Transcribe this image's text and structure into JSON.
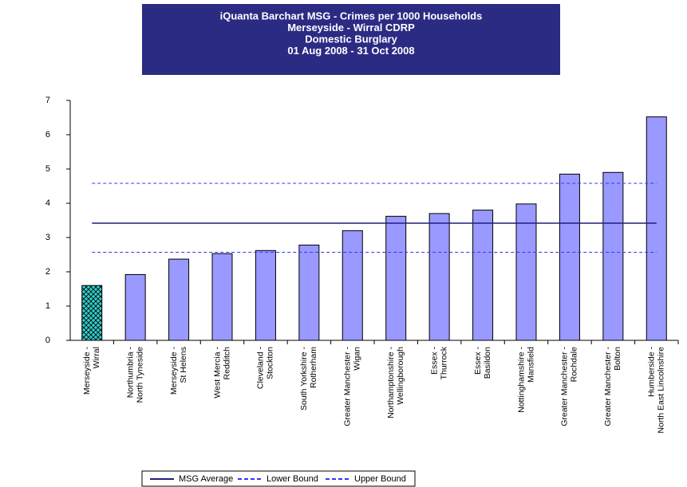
{
  "chart_data": {
    "type": "bar",
    "title": [
      "iQuanta Barchart MSG - Crimes per 1000 Households",
      "Merseyside - Wirral CDRP",
      "Domestic Burglary",
      "01 Aug 2008 - 31 Oct 2008"
    ],
    "categories": [
      [
        "Merseyside -",
        "Wirral"
      ],
      [
        "Northumbria -",
        "North Tyneside"
      ],
      [
        "Merseyside -",
        "St Helens"
      ],
      [
        "West Mercia -",
        "Redditch"
      ],
      [
        "Cleveland -",
        "Stockton"
      ],
      [
        "South Yorkshire -",
        "Rotherham"
      ],
      [
        "Greater Manchester -",
        "Wigan"
      ],
      [
        "Northamptonshire -",
        "Wellingborough"
      ],
      [
        "Essex -",
        "Thurrock"
      ],
      [
        "Essex -",
        "Basildon"
      ],
      [
        "Nottinghamshire -",
        "Mansfield"
      ],
      [
        "Greater Manchester -",
        "Rochdale"
      ],
      [
        "Greater Manchester -",
        "Bolton"
      ],
      [
        "Humberside -",
        "North East Lincolnshire"
      ]
    ],
    "values": [
      1.6,
      1.92,
      2.37,
      2.53,
      2.62,
      2.78,
      3.2,
      3.62,
      3.7,
      3.8,
      3.98,
      4.85,
      4.9,
      6.52
    ],
    "color": "#9999ff",
    "highlight": 0,
    "highlight_color": "#33cccc",
    "ylim": [
      0,
      7
    ],
    "yticks": [
      0,
      1,
      2,
      3,
      4,
      5,
      6,
      7
    ],
    "lines": [
      {
        "name": "MSG Average",
        "value": 3.42,
        "color": "#1f1f80",
        "dashed": false
      },
      {
        "name": "Lower Bound",
        "value": 2.57,
        "color": "#3333ff",
        "dashed": true
      },
      {
        "name": "Upper Bound",
        "value": 4.58,
        "color": "#3333ff",
        "dashed": true
      }
    ]
  }
}
